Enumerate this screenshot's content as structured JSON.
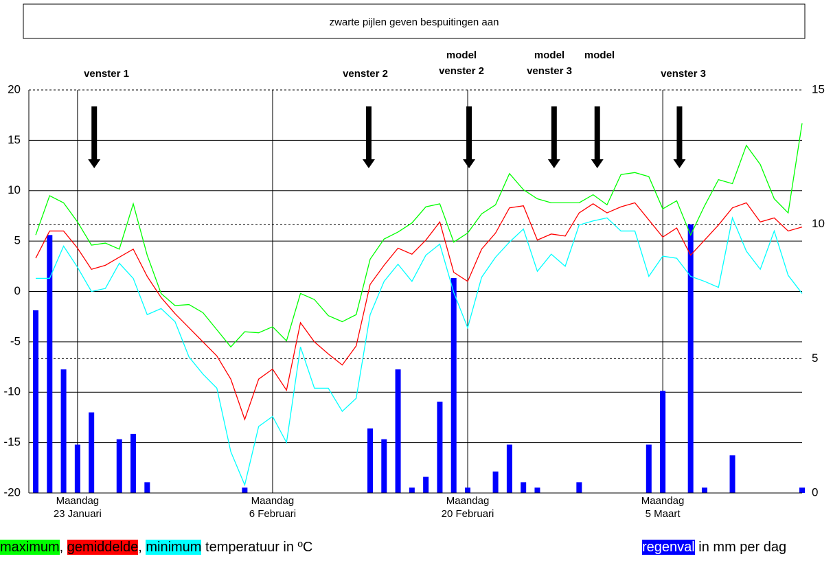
{
  "chart_data": {
    "type": "combo",
    "title": "zwarte pijlen geven bespuitingen aan",
    "categories": [
      null,
      null,
      null,
      "Maandag",
      null,
      null,
      null,
      null,
      null,
      null,
      null,
      null,
      null,
      null,
      null,
      null,
      null,
      "Maandag",
      null,
      null,
      null,
      null,
      null,
      null,
      null,
      null,
      null,
      null,
      null,
      null,
      null,
      "Maandag",
      null,
      null,
      null,
      null,
      null,
      null,
      null,
      null,
      null,
      null,
      null,
      null,
      null,
      "Maandag",
      null,
      null,
      null,
      null,
      null,
      null,
      null,
      null,
      null,
      null
    ],
    "dates": [
      null,
      null,
      null,
      "23 Januari",
      null,
      null,
      null,
      null,
      null,
      null,
      null,
      null,
      null,
      null,
      null,
      null,
      null,
      "6 Februari",
      null,
      null,
      null,
      null,
      null,
      null,
      null,
      null,
      null,
      null,
      null,
      null,
      null,
      "20 Februari",
      null,
      null,
      null,
      null,
      null,
      null,
      null,
      null,
      null,
      null,
      null,
      null,
      null,
      "5 Maart",
      null,
      null,
      null,
      null,
      null,
      null,
      null,
      null,
      null,
      null
    ],
    "series": [
      {
        "name": "maximum",
        "color": "#00ff00",
        "type": "line",
        "values": [
          5.6,
          9.5,
          8.8,
          6.9,
          4.6,
          4.8,
          4.2,
          8.7,
          3.6,
          -0.2,
          -1.4,
          -1.3,
          -2.1,
          -3.8,
          -5.5,
          -4.0,
          -4.1,
          -3.5,
          -4.9,
          -0.2,
          -0.8,
          -2.4,
          -3.0,
          -2.3,
          3.2,
          5.2,
          5.9,
          6.8,
          8.4,
          8.7,
          4.9,
          5.8,
          7.7,
          8.6,
          11.7,
          10.1,
          9.2,
          8.8,
          8.8,
          8.8,
          9.6,
          8.6,
          11.6,
          11.8,
          11.4,
          8.2,
          9.0,
          5.6,
          8.5,
          11.1,
          10.7,
          14.5,
          12.6,
          9.2,
          7.8,
          16.7
        ]
      },
      {
        "name": "gemiddelde",
        "color": "#ff0000",
        "type": "line",
        "values": [
          3.3,
          6.0,
          6.0,
          4.3,
          2.2,
          2.6,
          3.4,
          4.2,
          1.5,
          -0.6,
          -2.2,
          -3.6,
          -5.0,
          -6.4,
          -8.7,
          -12.7,
          -8.7,
          -7.7,
          -9.8,
          -3.1,
          -5.0,
          -6.2,
          -7.3,
          -5.4,
          0.7,
          2.6,
          4.3,
          3.7,
          5.1,
          6.9,
          1.9,
          1.0,
          4.2,
          5.8,
          8.3,
          8.5,
          5.1,
          5.7,
          5.5,
          7.8,
          8.7,
          7.8,
          8.4,
          8.8,
          7.1,
          5.4,
          6.3,
          3.6,
          5.1,
          6.6,
          8.3,
          8.8,
          6.9,
          7.3,
          6.0,
          6.4
        ]
      },
      {
        "name": "minimum",
        "color": "#00ffff",
        "type": "line",
        "values": [
          1.3,
          1.3,
          4.5,
          2.4,
          0.0,
          0.3,
          2.8,
          1.3,
          -2.3,
          -1.7,
          -3.0,
          -6.5,
          -8.2,
          -9.6,
          -15.9,
          -19.2,
          -13.4,
          -12.4,
          -15.0,
          -5.5,
          -9.6,
          -9.6,
          -11.9,
          -10.6,
          -2.3,
          1.0,
          2.7,
          1.0,
          3.6,
          4.7,
          -0.1,
          -3.6,
          1.4,
          3.4,
          4.9,
          6.2,
          2.0,
          3.7,
          2.5,
          6.6,
          7.0,
          7.3,
          6.0,
          6.0,
          1.5,
          3.5,
          3.3,
          1.5,
          1.0,
          0.4,
          7.3,
          4.0,
          2.2,
          6.0,
          1.6,
          -0.2
        ]
      },
      {
        "name": "regenval",
        "color": "#0000ff",
        "type": "bar",
        "axis": "y2",
        "values": [
          6.8,
          9.6,
          4.6,
          1.8,
          3.0,
          0,
          2.0,
          2.2,
          0.4,
          0,
          0,
          0,
          0,
          0,
          0,
          0.2,
          0,
          0,
          0,
          0,
          0,
          0,
          0,
          0,
          2.4,
          2.0,
          4.6,
          0.2,
          0.6,
          3.4,
          8.0,
          0.2,
          0,
          0.8,
          1.8,
          0.4,
          0.2,
          0,
          0,
          0.4,
          0,
          0,
          0,
          0,
          1.8,
          3.8,
          0,
          10.0,
          0.2,
          0,
          1.4,
          0,
          0,
          0,
          0,
          0.2
        ]
      }
    ],
    "ylim": [
      -20,
      20
    ],
    "yticks": [
      -20,
      -15,
      -10,
      -5,
      0,
      5,
      10,
      15,
      20
    ],
    "y2lim": [
      0,
      15
    ],
    "y2ticks": [
      0,
      5,
      10,
      15
    ],
    "temperature_caption": "temperatuur in ºC",
    "rain_caption": "in mm per dag",
    "legend_separator": ",",
    "sprays": [
      4.2,
      23.9,
      31.1,
      37.2,
      40.3,
      46.2
    ],
    "annotations": [
      {
        "lines": [
          "venster 1"
        ]
      },
      {
        "lines": [
          "venster 2"
        ]
      },
      {
        "lines": [
          "model",
          "venster 2"
        ]
      },
      {
        "lines": [
          "model",
          "venster 3"
        ]
      },
      {
        "lines": [
          "model"
        ]
      },
      {
        "lines": [
          "venster 3"
        ]
      }
    ]
  }
}
